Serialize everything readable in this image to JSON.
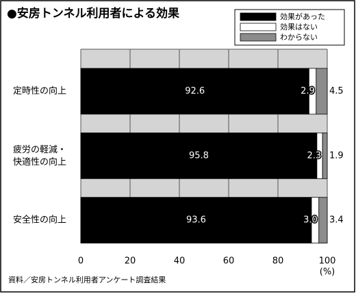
{
  "chart_data": {
    "type": "stacked-barh",
    "title": "●安房トンネル利用者による効果",
    "categories": [
      "定時性の向上",
      "疲労の軽減・\n快適性の向上",
      "安全性の向上"
    ],
    "series": [
      {
        "name": "効果があった",
        "color": "#000000",
        "values": [
          92.6,
          95.8,
          93.6
        ]
      },
      {
        "name": "効果はない",
        "color": "#ffffff",
        "values": [
          2.9,
          2.3,
          3.0
        ],
        "value_labels": [
          "2.9",
          "2.3",
          "3.0"
        ]
      },
      {
        "name": "わからない",
        "color": "#8c8c8c",
        "values": [
          4.5,
          1.9,
          3.4
        ]
      }
    ],
    "xlim": [
      0,
      100
    ],
    "xticks": [
      0,
      20,
      40,
      60,
      80,
      100
    ],
    "grid": true,
    "x_unit": "(%)",
    "source": "資料／安房トンネル利用者アンケート調査結果",
    "legend": "top-right"
  }
}
